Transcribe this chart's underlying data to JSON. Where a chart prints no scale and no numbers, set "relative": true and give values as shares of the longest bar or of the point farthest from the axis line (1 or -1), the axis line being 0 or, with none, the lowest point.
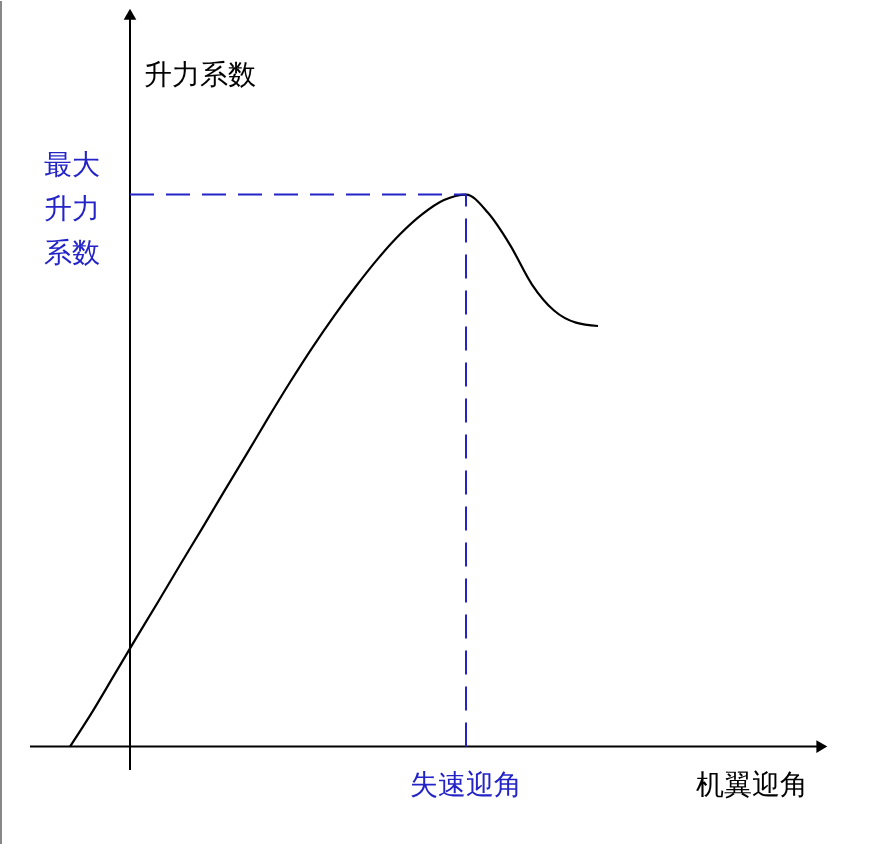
{
  "chart_data": {
    "type": "line",
    "relative": true,
    "xlabel": "机翼迎角",
    "ylabel": "升力系数",
    "categories": [
      null,
      null,
      null,
      null,
      null,
      null,
      null,
      null,
      null,
      null,
      null,
      null,
      null,
      null,
      null,
      null,
      null,
      null,
      null,
      null,
      null,
      null,
      null,
      null,
      null
    ],
    "series": [
      {
        "color": "#000000",
        "values": [
          0,
          0.062,
          0.129,
          0.196,
          0.262,
          0.329,
          0.395,
          0.462,
          0.528,
          0.595,
          0.66,
          0.722,
          0.78,
          0.834,
          0.884,
          0.928,
          0.964,
          0.99,
          1,
          0.967,
          0.909,
          0.837,
          0.79,
          0.768,
          0.762
        ]
      }
    ],
    "ref_lines": [
      {
        "axis": "y",
        "value": 1,
        "label": "最大升力系数",
        "color": "#2323c8",
        "line_style": "dashed"
      }
    ],
    "annotations": [
      "失速迎角"
    ],
    "line_style": "solid"
  }
}
